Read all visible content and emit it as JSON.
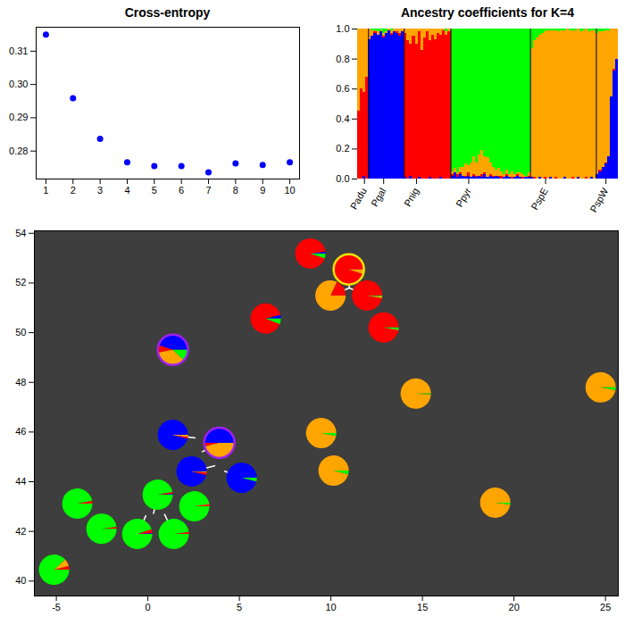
{
  "chart_data": [
    {
      "type": "scatter",
      "title": "Cross-entropy",
      "marker": "circle",
      "color": "#0000ff",
      "x": [
        1,
        2,
        3,
        4,
        5,
        6,
        7,
        8,
        9,
        10
      ],
      "values": [
        0.315,
        0.2959,
        0.2837,
        0.2766,
        0.2755,
        0.2755,
        0.2736,
        0.2763,
        0.2758,
        0.2766
      ],
      "xlim": [
        0.64,
        10.36
      ],
      "ylim": [
        0.2716,
        0.3172
      ],
      "xticks": [
        1,
        2,
        3,
        4,
        5,
        6,
        7,
        8,
        9,
        10
      ],
      "yticks": [
        0.28,
        0.29,
        {
          "value": 0.3,
          "label": "0.30"
        },
        0.31
      ]
    },
    {
      "type": "bar",
      "stacked": true,
      "title": "Ancestry coefficients for K=4",
      "categories": [
        null,
        null,
        "Padu",
        null,
        null,
        null,
        null,
        null,
        null,
        "Pgal",
        null,
        null,
        null,
        null,
        null,
        null,
        null,
        null,
        null,
        null,
        null,
        "Pnig",
        null,
        null,
        null,
        null,
        null,
        null,
        null,
        null,
        null,
        null,
        null,
        null,
        null,
        null,
        null,
        null,
        null,
        null,
        "Ppyr",
        null,
        null,
        null,
        null,
        null,
        null,
        null,
        null,
        null,
        null,
        null,
        null,
        null,
        null,
        null,
        null,
        null,
        null,
        null,
        null,
        null,
        null,
        null,
        null,
        null,
        null,
        null,
        "PspE",
        null,
        null,
        null,
        null,
        null,
        null,
        null,
        null,
        null,
        null,
        null,
        null,
        null,
        null,
        null,
        null,
        null,
        null,
        null,
        null,
        null,
        "PspW",
        null,
        null,
        null,
        null
      ],
      "separators": [
        4,
        17,
        34,
        63,
        87
      ],
      "series": [
        {
          "color": "#0000ff",
          "values": [
            0,
            0,
            0.02,
            0,
            0.93,
            0.95,
            0.97,
            0.96,
            0.98,
            0.94,
            0.97,
            0.99,
            0.96,
            0.98,
            0.97,
            0.95,
            0.98,
            0.01,
            0,
            0.02,
            0,
            0,
            0.01,
            0,
            0,
            0,
            0.01,
            0,
            0,
            0,
            0.01,
            0,
            0,
            0,
            0.02,
            0.04,
            0.01,
            0.03,
            0.02,
            0.01,
            0.02,
            0.01,
            0.02,
            0.01,
            0.02,
            0.01,
            0.03,
            0.01,
            0.02,
            0.01,
            0.02,
            0.01,
            0,
            0.01,
            0.02,
            0.01,
            0,
            0.01,
            0.02,
            0.01,
            0,
            0.01,
            0.01,
            0.01,
            0,
            0,
            0.01,
            0,
            0,
            0,
            0.01,
            0,
            0,
            0,
            0,
            0.01,
            0,
            0,
            0,
            0,
            0.01,
            0,
            0,
            0,
            0,
            0.01,
            0,
            0.03,
            0.05,
            0.08,
            0.1,
            0.15,
            0.55,
            0.72,
            0.8
          ]
        },
        {
          "color": "#ff0000",
          "values": [
            0.45,
            0.6,
            0.56,
            0.68,
            0,
            0,
            0.01,
            0,
            0,
            0.01,
            0,
            0,
            0.01,
            0,
            0.01,
            0.02,
            0,
            0.96,
            0.92,
            0.88,
            0.95,
            0.9,
            0.97,
            0.86,
            0.94,
            0.98,
            0.91,
            0.96,
            0.93,
            0.97,
            0.95,
            0.99,
            0.96,
            0.98,
            0.01,
            0,
            0.02,
            0.01,
            0,
            0.01,
            0.02,
            0,
            0.01,
            0.01,
            0,
            0.02,
            0.01,
            0,
            0.01,
            0.01,
            0,
            0.01,
            0.02,
            0,
            0.01,
            0,
            0.01,
            0,
            0.01,
            0,
            0.01,
            0,
            0.01,
            0,
            0.01,
            0,
            0,
            0,
            0.01,
            0,
            0,
            0,
            0.01,
            0,
            0,
            0,
            0,
            0,
            0.01,
            0,
            0,
            0,
            0,
            0.01,
            0,
            0,
            0,
            0,
            0.01,
            0,
            0.01,
            0,
            0,
            0.01,
            0
          ]
        },
        {
          "color": "#ffa500",
          "values": [
            0.55,
            0.4,
            0.42,
            0.32,
            0.07,
            0.04,
            0.01,
            0.02,
            0.01,
            0.02,
            0.01,
            0.01,
            0.02,
            0.02,
            0.02,
            0.03,
            0.02,
            0.03,
            0.08,
            0.1,
            0.05,
            0.1,
            0.02,
            0.14,
            0.06,
            0.02,
            0.08,
            0.04,
            0.07,
            0.03,
            0.04,
            0.01,
            0.02,
            0.02,
            0.02,
            0.03,
            0.01,
            0.04,
            0.06,
            0.08,
            0.05,
            0.1,
            0.12,
            0.09,
            0.14,
            0.16,
            0.11,
            0.13,
            0.08,
            0.06,
            0.04,
            0.05,
            0.03,
            0.02,
            0.03,
            0.02,
            0.04,
            0.02,
            0.01,
            0.03,
            0.02,
            0.01,
            0.02,
            0.86,
            0.91,
            0.94,
            0.95,
            0.97,
            0.97,
            0.99,
            0.98,
            0.99,
            0.98,
            0.98,
            0.99,
            0.98,
            1,
            0.99,
            0.98,
            0.99,
            0.99,
            0.98,
            0.99,
            0.99,
            0.98,
            0.98,
            0.99,
            0.94,
            0.92,
            0.9,
            0.88,
            0.84,
            0.45,
            0.27,
            0.2
          ]
        },
        {
          "color": "#00ff00",
          "values": [
            0,
            0,
            0,
            0,
            0,
            0.01,
            0.01,
            0.02,
            0.01,
            0.03,
            0.02,
            0,
            0.01,
            0,
            0,
            0,
            0,
            0,
            0,
            0,
            0,
            0,
            0,
            0,
            0,
            0,
            0,
            0,
            0,
            0,
            0,
            0,
            0.02,
            0,
            0.95,
            0.93,
            0.96,
            0.92,
            0.92,
            0.9,
            0.91,
            0.89,
            0.85,
            0.89,
            0.84,
            0.81,
            0.85,
            0.86,
            0.89,
            0.92,
            0.94,
            0.93,
            0.95,
            0.97,
            0.94,
            0.97,
            0.95,
            0.97,
            0.96,
            0.96,
            0.97,
            0.98,
            0.96,
            0.13,
            0.08,
            0.06,
            0.04,
            0.03,
            0.02,
            0.01,
            0.01,
            0.01,
            0.01,
            0.02,
            0.01,
            0.01,
            0,
            0.01,
            0.01,
            0.01,
            0,
            0.02,
            0.01,
            0,
            0.02,
            0.01,
            0.01,
            0.03,
            0.02,
            0.02,
            0.01,
            0.01,
            0,
            0,
            0
          ]
        }
      ],
      "ylim": [
        0,
        1
      ],
      "yticks": [
        {
          "value": 0,
          "label": "0.0"
        },
        0.2,
        0.4,
        0.6,
        0.8,
        {
          "value": 1,
          "label": "1.0"
        }
      ]
    },
    {
      "type": "map",
      "xlim": [
        -6.2,
        25.7
      ],
      "ylim": [
        39.4,
        54.1
      ],
      "xticks": [
        -5,
        0,
        5,
        10,
        15,
        20,
        25
      ],
      "yticks": [
        40,
        42,
        44,
        46,
        48,
        50,
        52,
        54
      ],
      "colors": [
        "#0000ff",
        "#ff0000",
        "#ffa500",
        "#00ff00"
      ],
      "pies": [
        {
          "lon": 8.9,
          "lat": 53.17,
          "values": [
            0.02,
            0.93,
            0,
            0.05
          ]
        },
        {
          "lon": 11.0,
          "lat": 52.53,
          "values": [
            0,
            0.95,
            0.05,
            0
          ],
          "outline": "#f0e000",
          "site": [
            11.0,
            51.8
          ]
        },
        {
          "lon": 10.0,
          "lat": 51.48,
          "values": [
            0,
            0.18,
            0.82,
            0
          ],
          "site": [
            11.0,
            51.8
          ]
        },
        {
          "lon": 12.0,
          "lat": 51.48,
          "values": [
            0,
            0.97,
            0.02,
            0.01
          ],
          "site": [
            11.0,
            51.8
          ]
        },
        {
          "lon": 12.9,
          "lat": 50.19,
          "values": [
            0,
            0.97,
            0.01,
            0.02
          ]
        },
        {
          "lon": 6.46,
          "lat": 50.55,
          "values": [
            0.04,
            0.9,
            0,
            0.06
          ]
        },
        {
          "lon": 1.39,
          "lat": 49.29,
          "values": [
            0.45,
            0.08,
            0.35,
            0.12
          ],
          "outline": "#a020f0"
        },
        {
          "lon": 14.66,
          "lat": 47.53,
          "values": [
            0,
            0,
            0.99,
            0.01
          ]
        },
        {
          "lon": 24.76,
          "lat": 47.78,
          "values": [
            0,
            0,
            0.97,
            0.03
          ]
        },
        {
          "lon": 1.39,
          "lat": 45.87,
          "values": [
            0.96,
            0.02,
            0.02,
            0
          ],
          "site": [
            2.6,
            45.76
          ]
        },
        {
          "lon": 3.93,
          "lat": 45.55,
          "values": [
            0.5,
            0.04,
            0.46,
            0
          ],
          "outline": "#a020f0",
          "site": [
            2.95,
            45.2
          ]
        },
        {
          "lon": 9.49,
          "lat": 45.94,
          "values": [
            0,
            0,
            0.97,
            0.03
          ]
        },
        {
          "lon": 2.41,
          "lat": 44.4,
          "values": [
            0.96,
            0.03,
            0.01,
            0
          ],
          "site": [
            3.68,
            44.65
          ]
        },
        {
          "lon": 10.17,
          "lat": 44.43,
          "values": [
            0,
            0,
            0.96,
            0.04
          ]
        },
        {
          "lon": 5.15,
          "lat": 44.14,
          "values": [
            0.96,
            0,
            0,
            0.04
          ],
          "site": [
            4.17,
            44.43
          ]
        },
        {
          "lon": 0.56,
          "lat": 43.46,
          "values": [
            0.01,
            0.02,
            0,
            0.97
          ],
          "site": [
            0.3,
            42.7
          ]
        },
        {
          "lon": 2.56,
          "lat": 42.99,
          "values": [
            0,
            0.02,
            0.01,
            0.97
          ]
        },
        {
          "lon": -3.83,
          "lat": 43.1,
          "values": [
            0,
            0.03,
            0,
            0.97
          ]
        },
        {
          "lon": -2.51,
          "lat": 42.09,
          "values": [
            0,
            0.02,
            0,
            0.98
          ]
        },
        {
          "lon": -0.56,
          "lat": 41.88,
          "values": [
            0.01,
            0.04,
            0,
            0.95
          ],
          "site": [
            -0.1,
            42.65
          ]
        },
        {
          "lon": 1.44,
          "lat": 41.88,
          "values": [
            0,
            0.02,
            0,
            0.98
          ],
          "site": [
            0.9,
            42.7
          ]
        },
        {
          "lon": -5.1,
          "lat": 40.44,
          "values": [
            0,
            0.04,
            0.08,
            0.88
          ]
        },
        {
          "lon": 19.0,
          "lat": 43.14,
          "values": [
            0,
            0,
            0.98,
            0.02
          ]
        }
      ]
    }
  ]
}
